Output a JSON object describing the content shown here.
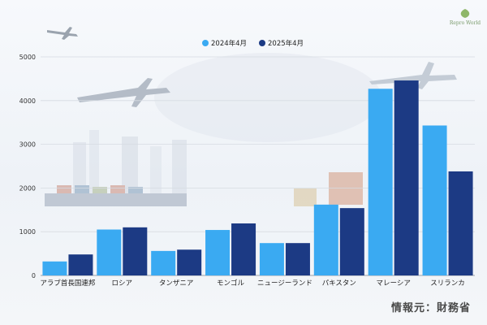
{
  "brand": "Repro World",
  "source": "情報元：財務省",
  "chart_data": {
    "type": "bar",
    "categories": [
      "アラブ首長国連邦",
      "ロシア",
      "タンザニア",
      "モンゴル",
      "ニュージーランド",
      "パキスタン",
      "マレーシア",
      "スリランカ"
    ],
    "series": [
      {
        "name": "2024年4月",
        "color": "#3aaaf2",
        "values": [
          320,
          1050,
          560,
          1040,
          740,
          1620,
          4270,
          3430
        ]
      },
      {
        "name": "2025年4月",
        "color": "#1c3a84",
        "values": [
          480,
          1100,
          590,
          1190,
          740,
          1540,
          4460,
          2380
        ]
      }
    ],
    "ylim": [
      0,
      5000
    ],
    "yticks": [
      0,
      1000,
      2000,
      3000,
      4000,
      5000
    ],
    "legend_position": "top-center",
    "grid": true
  }
}
